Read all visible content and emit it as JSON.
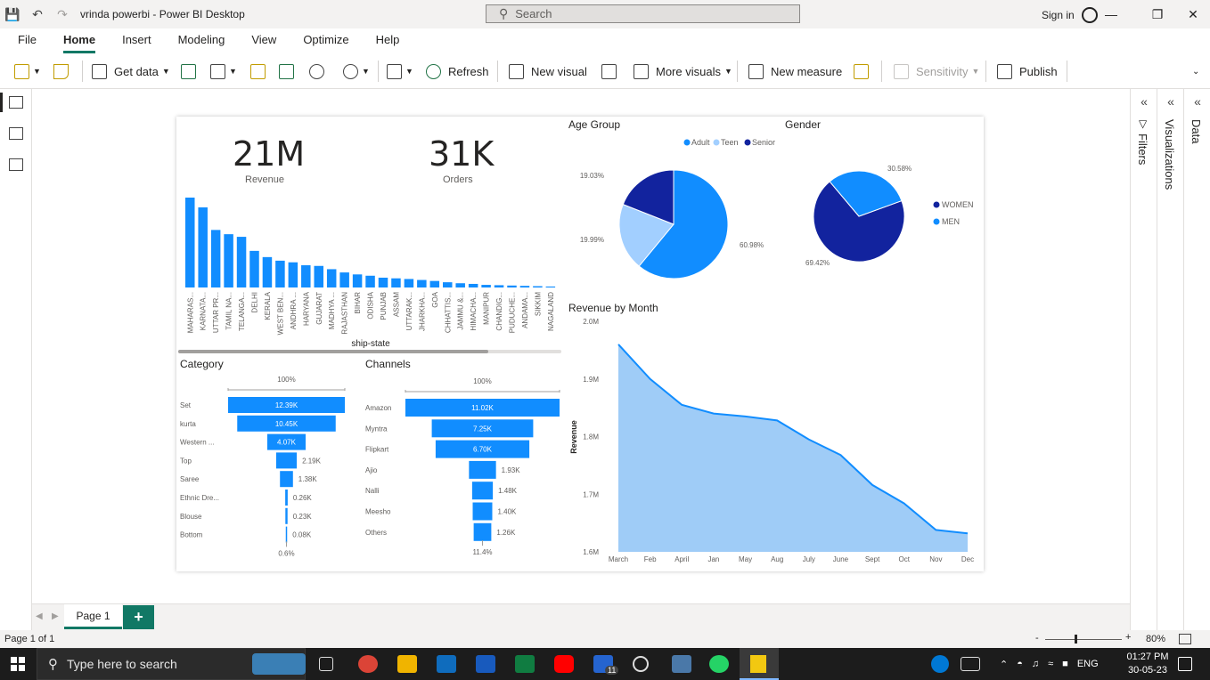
{
  "window": {
    "title": "vrinda powerbi - Power BI Desktop",
    "search_placeholder": "Search",
    "sign_in": "Sign in"
  },
  "menu": [
    "File",
    "Home",
    "Insert",
    "Modeling",
    "View",
    "Optimize",
    "Help"
  ],
  "ribbon": {
    "get_data": "Get data",
    "refresh": "Refresh",
    "new_visual": "New visual",
    "more_visuals": "More visuals",
    "new_measure": "New measure",
    "sensitivity": "Sensitivity",
    "publish": "Publish"
  },
  "panes": {
    "filters": "Filters",
    "visualizations": "Visualizations",
    "data": "Data"
  },
  "page_tabs": {
    "page1": "Page 1",
    "add": "+"
  },
  "status": {
    "page": "Page 1 of 1",
    "zoom": "80%",
    "minus": "-",
    "plus": "+"
  },
  "taskbar": {
    "search": "Type here to search",
    "lang": "ENG",
    "time": "01:27 PM",
    "date": "30-05-23",
    "badge": "11"
  },
  "cards": {
    "revenue": {
      "value": "21M",
      "label": "Revenue"
    },
    "orders": {
      "value": "31K",
      "label": "Orders"
    }
  },
  "colors": {
    "primary": "#118DFF",
    "dark": "#12239E",
    "light": "#A2CFFF",
    "area": "#9FCCF7",
    "accent": "#117865"
  },
  "chart_data": [
    {
      "id": "ship_state",
      "type": "bar",
      "xlabel": "ship-state",
      "categories": [
        "MAHARAS...",
        "KARNATA...",
        "UTTAR PR...",
        "TAMIL NA...",
        "TELANGA...",
        "DELHI",
        "KERALA",
        "WEST BEN...",
        "ANDHRA ...",
        "HARYANA",
        "GUJARAT",
        "MADHYA ...",
        "RAJASTHAN",
        "BIHAR",
        "ODISHA",
        "PUNJAB",
        "ASSAM",
        "UTTARAK...",
        "JHARKHA...",
        "GOA",
        "CHHATTIS...",
        "JAMMU &...",
        "HIMACHA...",
        "MANIPUR",
        "CHANDIG...",
        "PUDUCHE...",
        "ANDAMA...",
        "SIKKIM",
        "NAGALAND"
      ],
      "values": [
        2.75,
        2.45,
        1.76,
        1.63,
        1.55,
        1.12,
        0.93,
        0.82,
        0.77,
        0.68,
        0.66,
        0.56,
        0.46,
        0.4,
        0.36,
        0.3,
        0.28,
        0.26,
        0.23,
        0.2,
        0.16,
        0.13,
        0.11,
        0.08,
        0.07,
        0.06,
        0.05,
        0.04,
        0.03
      ]
    },
    {
      "id": "age_group",
      "type": "pie",
      "title": "Age Group",
      "legend": [
        "Adult",
        "Teen",
        "Senior"
      ],
      "values": [
        60.98,
        19.99,
        19.03
      ],
      "labels": [
        "60.98%",
        "19.99%",
        "19.03%"
      ],
      "colors": [
        "#118DFF",
        "#A2CFFF",
        "#12239E"
      ]
    },
    {
      "id": "gender",
      "type": "pie",
      "title": "Gender",
      "legend": [
        "WOMEN",
        "MEN"
      ],
      "values": [
        69.42,
        30.58
      ],
      "labels": [
        "69.42%",
        "30.58%"
      ],
      "colors": [
        "#12239E",
        "#118DFF"
      ]
    },
    {
      "id": "category",
      "type": "bar",
      "title": "Category",
      "top_label": "100%",
      "bottom_label": "0.6%",
      "categories": [
        "Set",
        "kurta",
        "Western ...",
        "Top",
        "Saree",
        "Ethnic Dre...",
        "Blouse",
        "Bottom"
      ],
      "values": [
        12.39,
        10.45,
        4.07,
        2.19,
        1.38,
        0.26,
        0.23,
        0.08
      ],
      "labels": [
        "12.39K",
        "10.45K",
        "4.07K",
        "2.19K",
        "1.38K",
        "0.26K",
        "0.23K",
        "0.08K"
      ]
    },
    {
      "id": "channels",
      "type": "bar",
      "title": "Channels",
      "top_label": "100%",
      "bottom_label": "11.4%",
      "categories": [
        "Amazon",
        "Myntra",
        "Flipkart",
        "Ajio",
        "Nalli",
        "Meesho",
        "Others"
      ],
      "values": [
        11.02,
        7.25,
        6.7,
        1.93,
        1.48,
        1.4,
        1.26
      ],
      "labels": [
        "11.02K",
        "7.25K",
        "6.70K",
        "1.93K",
        "1.48K",
        "1.40K",
        "1.26K"
      ]
    },
    {
      "id": "revenue_by_month",
      "type": "area",
      "title": "Revenue by Month",
      "ylabel": "Revenue",
      "x": [
        "March",
        "Feb",
        "April",
        "Jan",
        "May",
        "Aug",
        "July",
        "June",
        "Sept",
        "Oct",
        "Nov",
        "Dec"
      ],
      "values": [
        1.96,
        1.9,
        1.855,
        1.84,
        1.835,
        1.828,
        1.795,
        1.768,
        1.716,
        1.684,
        1.638,
        1.632
      ],
      "ylim": [
        1.6,
        2.0
      ],
      "yticks": [
        "1.6M",
        "1.7M",
        "1.8M",
        "1.9M",
        "2.0M"
      ]
    }
  ]
}
